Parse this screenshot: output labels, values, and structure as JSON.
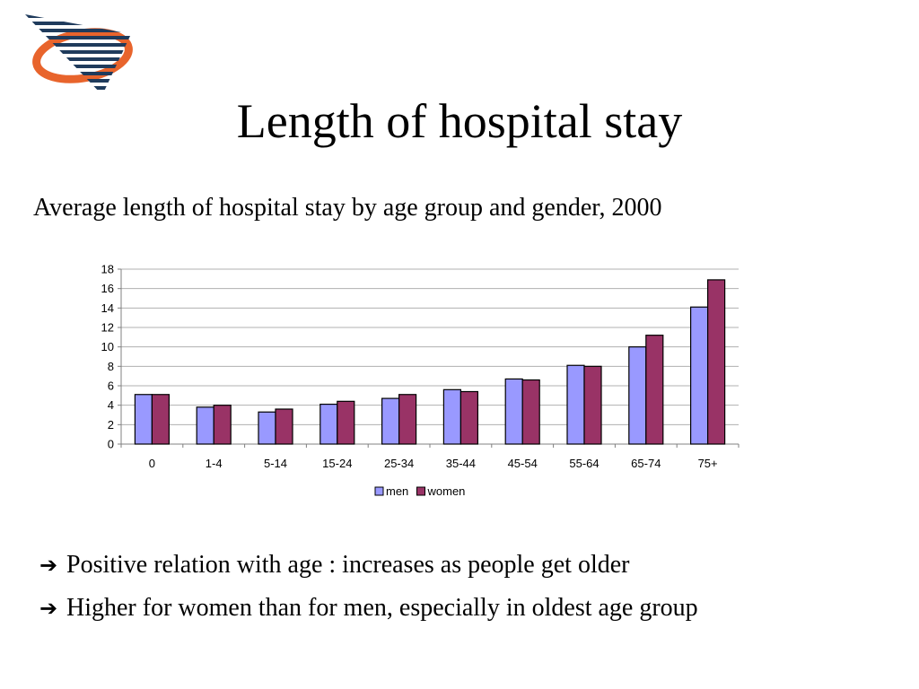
{
  "slide": {
    "title": "Length of hospital stay",
    "subtitle": "Average length of hospital stay by age group and gender, 2000",
    "bullets": [
      "Positive relation with age : increases as people get older",
      "Higher for women than for men, especially in oldest age group"
    ],
    "bullet_icon": "right-arrow-icon",
    "logo_icon": "striped-triangle-swoosh-logo",
    "colors": {
      "men": "#9999ff",
      "women": "#993366",
      "logo_orange": "#e8642c",
      "logo_navy": "#1f3b5c"
    }
  },
  "chart_data": {
    "type": "bar",
    "categories": [
      "0",
      "1-4",
      "5-14",
      "15-24",
      "25-34",
      "35-44",
      "45-54",
      "55-64",
      "65-74",
      "75+"
    ],
    "series": [
      {
        "name": "men",
        "values": [
          5.1,
          3.8,
          3.3,
          4.1,
          4.7,
          5.6,
          6.7,
          8.1,
          10.0,
          14.1
        ]
      },
      {
        "name": "women",
        "values": [
          5.1,
          4.0,
          3.6,
          4.4,
          5.1,
          5.4,
          6.6,
          8.0,
          11.2,
          16.9
        ]
      }
    ],
    "ylim": [
      0,
      18
    ],
    "yticks": [
      "0",
      "2",
      "4",
      "6",
      "8",
      "10",
      "12",
      "14",
      "16",
      "18"
    ],
    "grid": true,
    "legend": "bottom"
  }
}
